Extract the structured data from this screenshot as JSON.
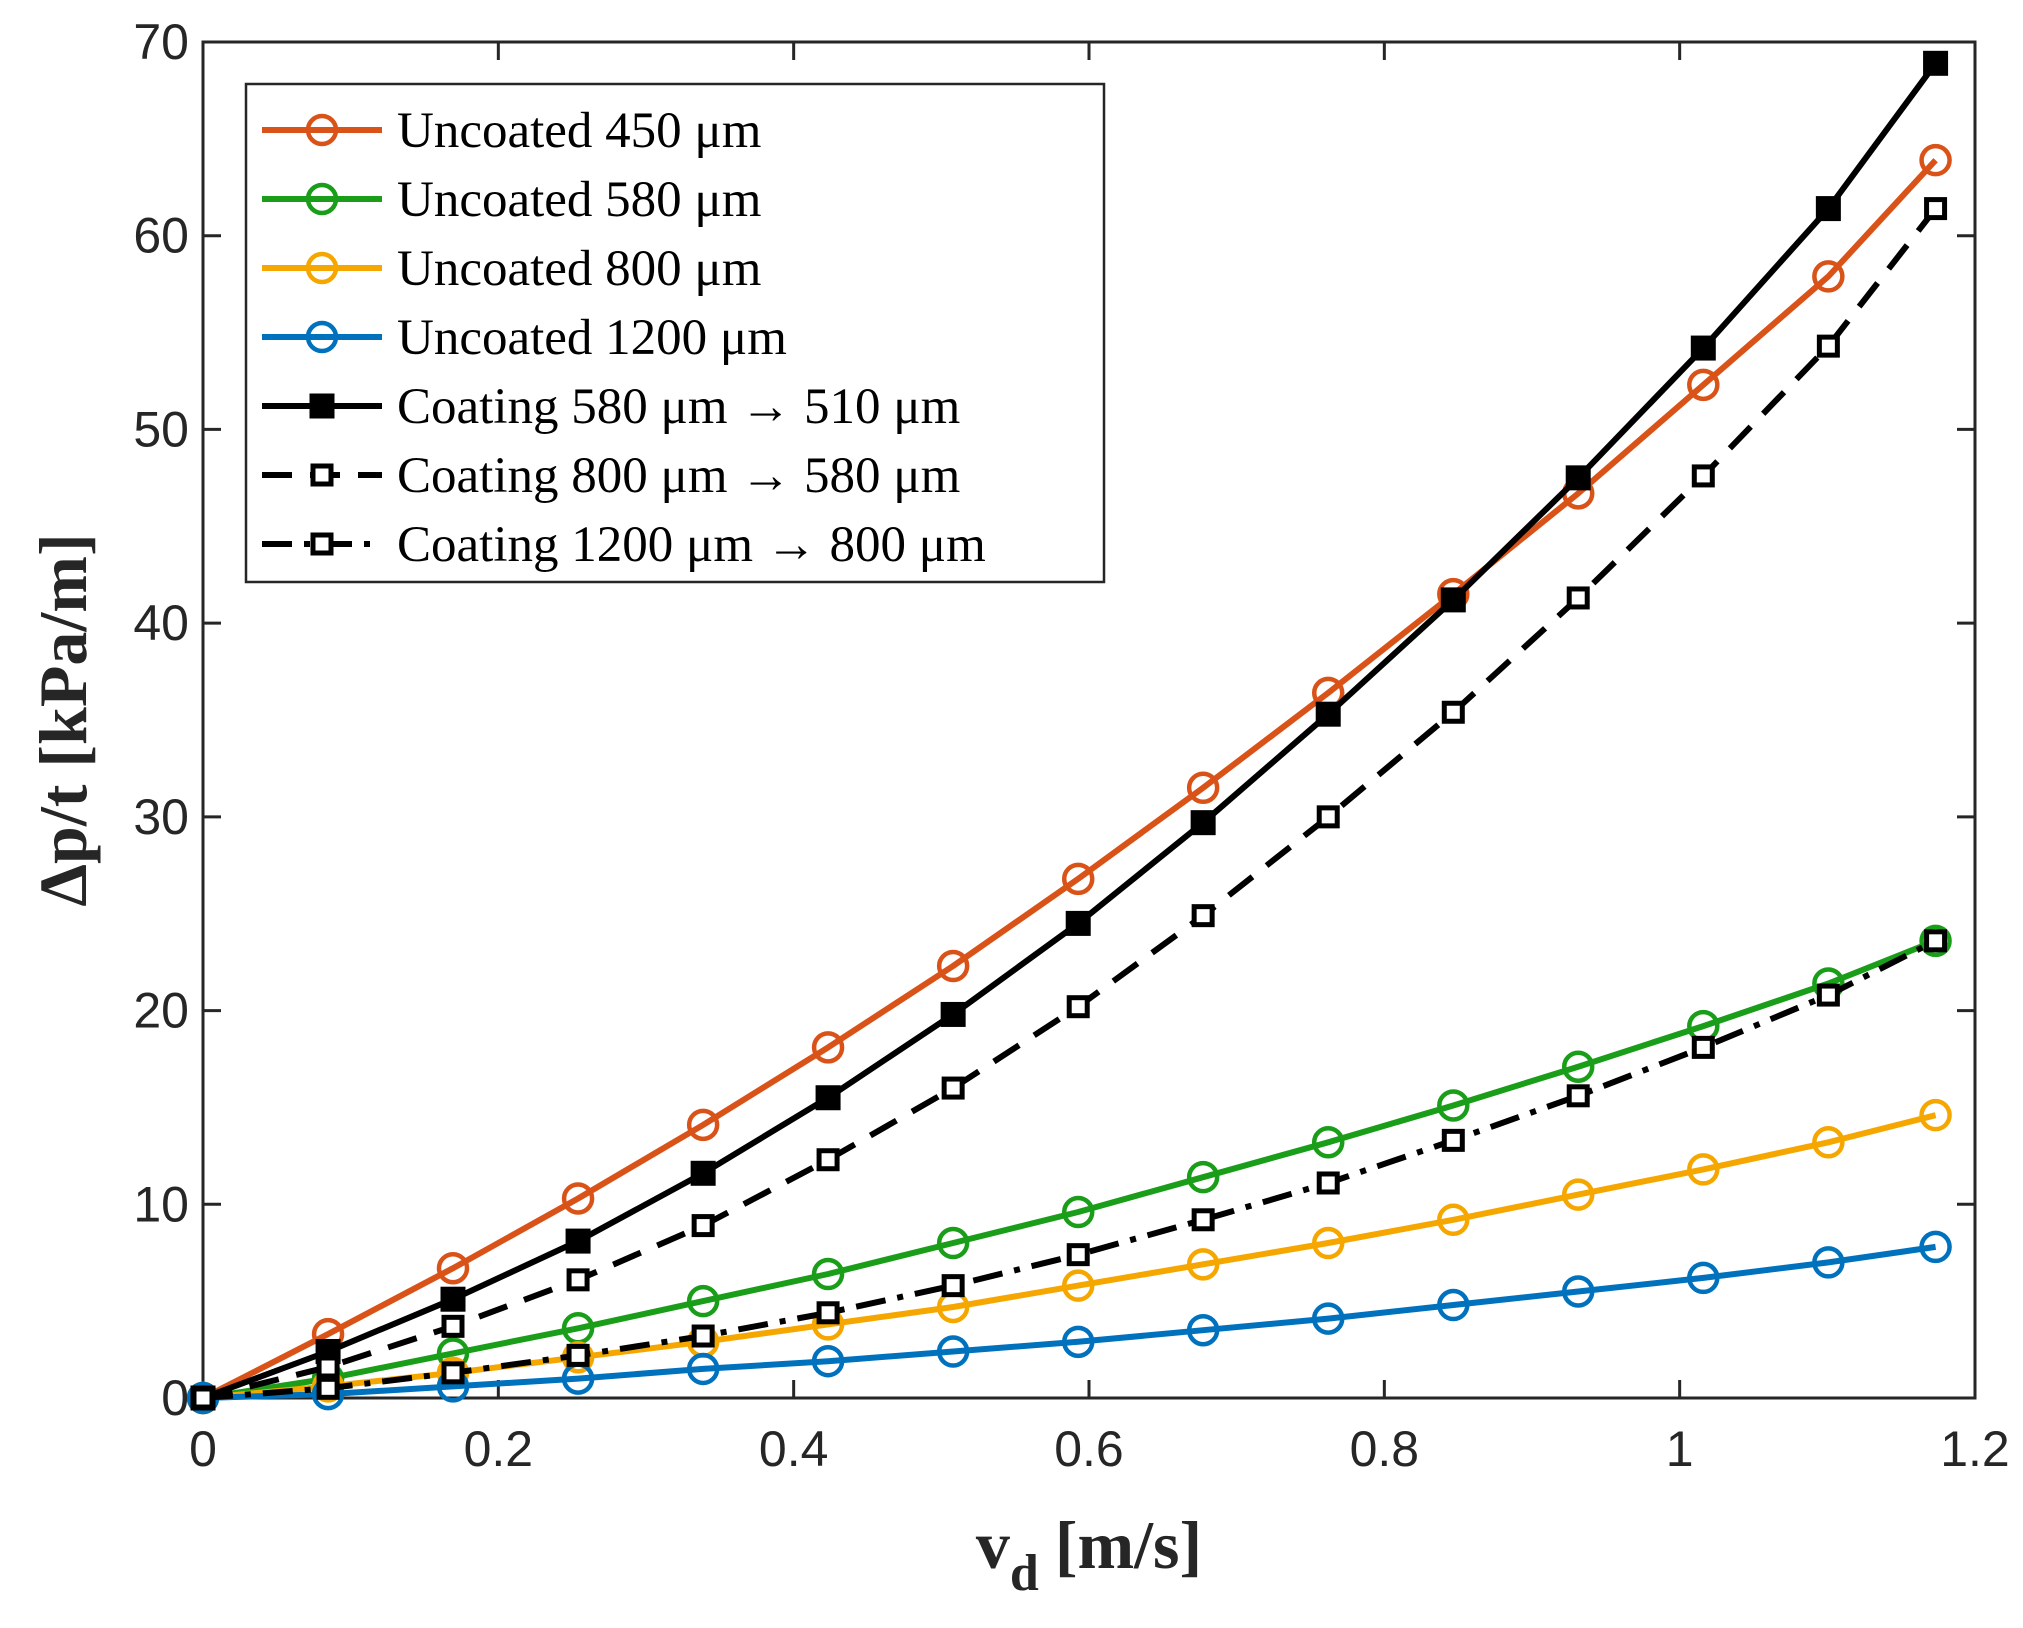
{
  "chart_data": {
    "type": "line",
    "xlabel_main": "v",
    "xlabel_sub": "d",
    "xlabel_unit": "[m/s]",
    "ylabel": "Δp/t [kPa/m]",
    "xlim": [
      0,
      1.2
    ],
    "ylim": [
      0,
      70
    ],
    "x_ticks": [
      0,
      0.2,
      0.4,
      0.6,
      0.8,
      1,
      1.2
    ],
    "x_tick_labels": [
      "0",
      "0.2",
      "0.4",
      "0.6",
      "0.8",
      "1",
      "1.2"
    ],
    "y_ticks": [
      0,
      10,
      20,
      30,
      40,
      50,
      60,
      70
    ],
    "y_tick_labels": [
      "0",
      "10",
      "20",
      "30",
      "40",
      "50",
      "60",
      "70"
    ],
    "grid": false,
    "legend_position": "top-left",
    "x": [
      0,
      0.0847,
      0.1693,
      0.254,
      0.3387,
      0.4233,
      0.508,
      0.5927,
      0.6773,
      0.762,
      0.8467,
      0.9313,
      1.016,
      1.1007,
      1.1733
    ],
    "series": [
      {
        "name": "Uncoated 450 μm",
        "color": "#D95319",
        "marker": "circle",
        "dash": "solid",
        "values": [
          0,
          3.3,
          6.7,
          10.3,
          14.1,
          18.1,
          22.3,
          26.8,
          31.5,
          36.4,
          41.5,
          46.7,
          52.3,
          57.9,
          63.9
        ]
      },
      {
        "name": "Uncoated 580 μm",
        "color": "#1A9E1A",
        "marker": "circle",
        "dash": "solid",
        "values": [
          0,
          1.0,
          2.3,
          3.6,
          5.0,
          6.4,
          8.0,
          9.6,
          11.4,
          13.2,
          15.1,
          17.1,
          19.2,
          21.4,
          23.6
        ]
      },
      {
        "name": "Uncoated 800 μm",
        "color": "#F5A700",
        "marker": "circle",
        "dash": "solid",
        "values": [
          0,
          0.6,
          1.3,
          2.1,
          2.9,
          3.8,
          4.7,
          5.8,
          6.9,
          8.0,
          9.2,
          10.5,
          11.8,
          13.2,
          14.6
        ]
      },
      {
        "name": "Uncoated 1200 μm",
        "color": "#0072BD",
        "marker": "circle",
        "dash": "solid",
        "values": [
          0,
          0.2,
          0.6,
          1.0,
          1.5,
          1.9,
          2.4,
          2.9,
          3.5,
          4.1,
          4.8,
          5.5,
          6.2,
          7.0,
          7.8
        ]
      },
      {
        "name": "Coating 580 μm → 510 μm",
        "color": "#000000",
        "marker": "square-filled",
        "dash": "solid",
        "values": [
          0,
          2.4,
          5.1,
          8.1,
          11.6,
          15.5,
          19.8,
          24.5,
          29.7,
          35.3,
          41.2,
          47.5,
          54.2,
          61.4,
          68.9
        ]
      },
      {
        "name": "Coating 800 μm → 580 μm",
        "color": "#000000",
        "marker": "square-open",
        "dash": "dashed",
        "values": [
          0,
          1.6,
          3.7,
          6.1,
          8.9,
          12.3,
          16.0,
          20.2,
          24.9,
          30.0,
          35.4,
          41.3,
          47.6,
          54.3,
          61.4
        ]
      },
      {
        "name": "Coating 1200 μm → 800 μm",
        "color": "#000000",
        "marker": "square-open",
        "dash": "dashdot",
        "values": [
          0,
          0.5,
          1.3,
          2.2,
          3.2,
          4.4,
          5.8,
          7.4,
          9.2,
          11.1,
          13.3,
          15.6,
          18.1,
          20.8,
          23.6
        ]
      }
    ]
  }
}
